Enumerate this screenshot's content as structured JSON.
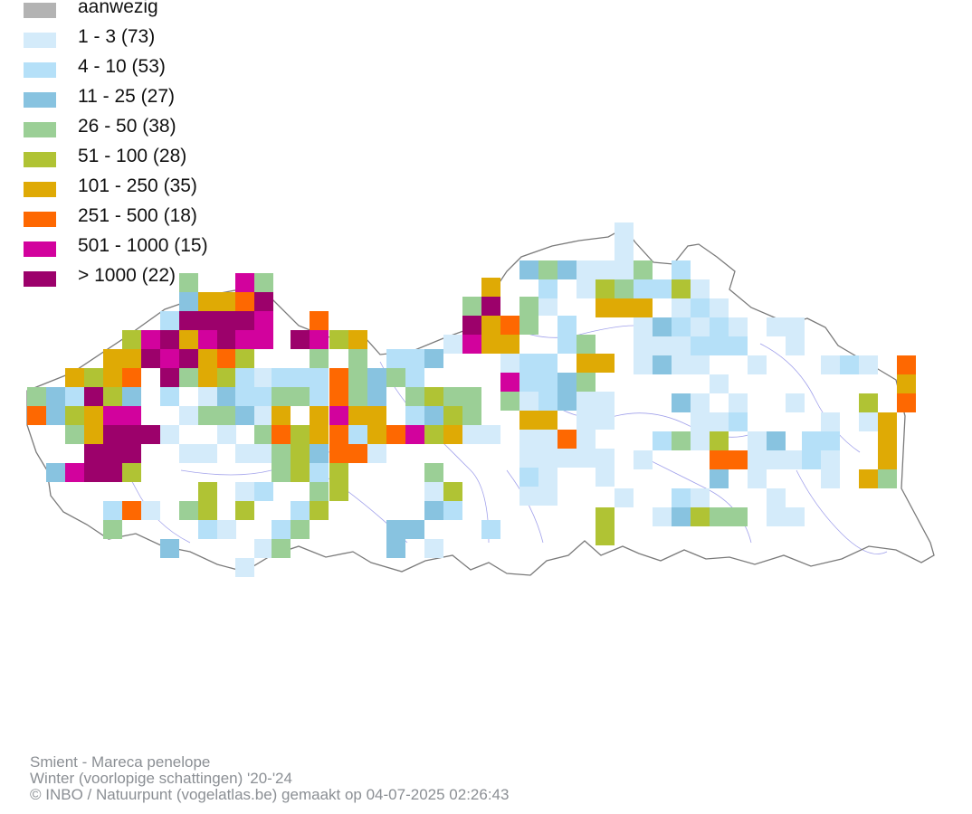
{
  "legend": {
    "items": [
      {
        "label": "aanwezig",
        "color": "#b3b3b3"
      },
      {
        "label": "1 - 3 (73)",
        "color": "#d4ebfa"
      },
      {
        "label": "4 - 10 (53)",
        "color": "#b5e0f8"
      },
      {
        "label": "11 - 25 (27)",
        "color": "#88c3e0"
      },
      {
        "label": "26 - 50 (38)",
        "color": "#9bcf96"
      },
      {
        "label": "51 - 100 (28)",
        "color": "#b0c334"
      },
      {
        "label": "101 - 250 (35)",
        "color": "#dfaa05"
      },
      {
        "label": "251 - 500 (18)",
        "color": "#fe6801"
      },
      {
        "label": "501 - 1000 (15)",
        "color": "#d2029d"
      },
      {
        "label": "> 1000 (22)",
        "color": "#9c016b"
      }
    ]
  },
  "footer": {
    "line1": "Smient - Mareca penelope",
    "line2": "Winter (voorlopige schattingen) '20-'24",
    "line3": "© INBO / Natuurpunt (vogelatlas.be) gemaakt op 04-07-2025 02:26:43"
  }
}
